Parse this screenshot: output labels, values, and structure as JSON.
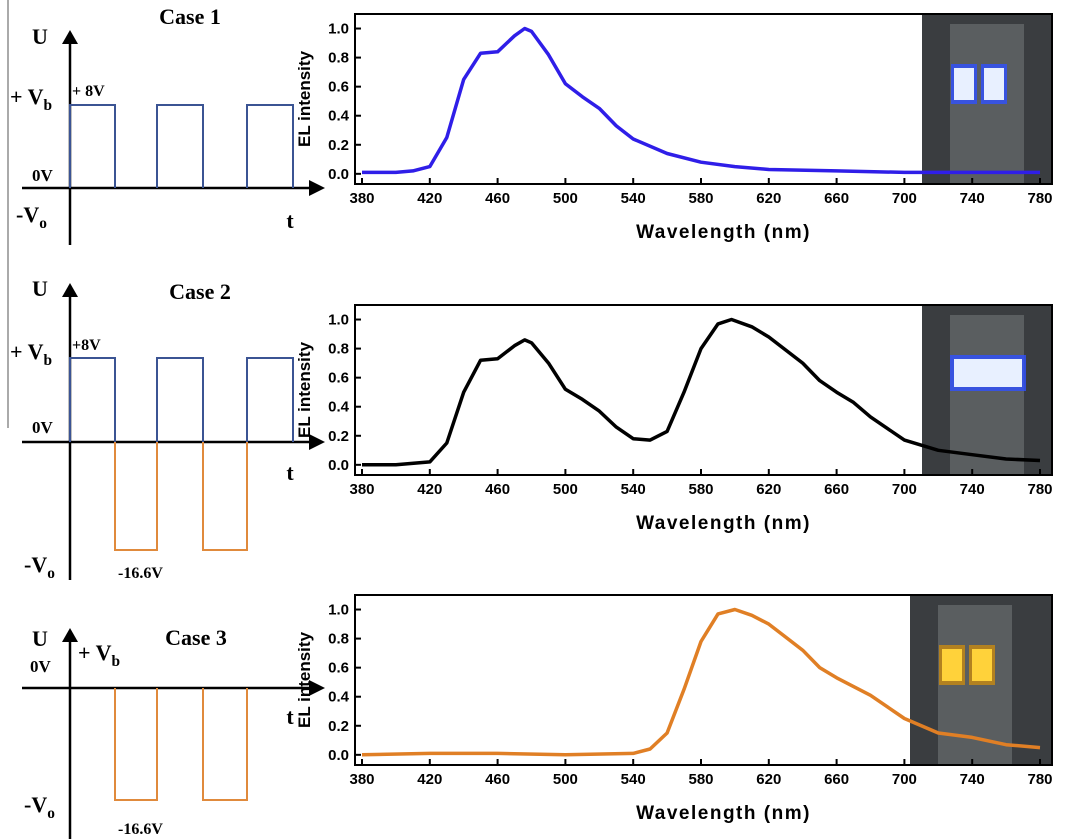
{
  "diagrams": [
    {
      "title": "Case 1",
      "y_axis": "U",
      "x_axis": "t",
      "labels": [
        {
          "text": "+ V",
          "sub": "b"
        },
        {
          "text": "+ 8V"
        },
        {
          "text": "0V"
        },
        {
          "text": "-V",
          "sub": "o"
        }
      ]
    },
    {
      "title": "Case 2",
      "y_axis": "U",
      "x_axis": "t",
      "labels": [
        {
          "text": "+ V",
          "sub": "b"
        },
        {
          "text": "+8V"
        },
        {
          "text": "0V"
        },
        {
          "text": "-V",
          "sub": "o"
        },
        {
          "text": "-16.6V"
        }
      ]
    },
    {
      "title": "Case 3",
      "y_axis": "U",
      "x_axis": "t",
      "labels": [
        {
          "text": "0V"
        },
        {
          "text": "+ V",
          "sub": "b"
        },
        {
          "text": "-V",
          "sub": "o"
        },
        {
          "text": "-16.6V"
        }
      ]
    }
  ],
  "chart_data": [
    {
      "type": "line",
      "xlabel": "Wavelength (nm)",
      "ylabel": "EL intensity",
      "color": "#2f1ee8",
      "x": [
        380,
        400,
        410,
        420,
        430,
        440,
        450,
        460,
        470,
        476,
        480,
        490,
        500,
        510,
        520,
        530,
        540,
        560,
        580,
        600,
        620,
        660,
        700,
        780
      ],
      "values": [
        0.01,
        0.01,
        0.02,
        0.05,
        0.25,
        0.65,
        0.83,
        0.84,
        0.95,
        1.0,
        0.98,
        0.82,
        0.62,
        0.53,
        0.45,
        0.33,
        0.24,
        0.14,
        0.08,
        0.05,
        0.03,
        0.02,
        0.01,
        0.01
      ],
      "xlim": [
        380,
        780
      ],
      "ylim": [
        -0.07,
        1.1
      ],
      "xticks": [
        380,
        420,
        460,
        500,
        540,
        580,
        620,
        660,
        700,
        740,
        780
      ],
      "yticks": [
        {
          "value": 0,
          "label": "0.0"
        },
        0.2,
        0.4,
        0.6,
        0.8,
        {
          "value": 1,
          "label": "1.0"
        }
      ]
    },
    {
      "type": "line",
      "xlabel": "Wavelength (nm)",
      "ylabel": "EL intensity",
      "color": "#000000",
      "x": [
        380,
        400,
        420,
        430,
        440,
        450,
        460,
        470,
        476,
        480,
        490,
        500,
        510,
        520,
        530,
        540,
        550,
        560,
        570,
        580,
        590,
        598,
        610,
        620,
        640,
        650,
        660,
        670,
        680,
        700,
        720,
        740,
        760,
        780
      ],
      "values": [
        0,
        0,
        0.02,
        0.15,
        0.5,
        0.72,
        0.73,
        0.82,
        0.86,
        0.84,
        0.7,
        0.52,
        0.45,
        0.37,
        0.26,
        0.18,
        0.17,
        0.23,
        0.5,
        0.8,
        0.97,
        1.0,
        0.95,
        0.88,
        0.7,
        0.58,
        0.5,
        0.43,
        0.33,
        0.17,
        0.1,
        0.07,
        0.04,
        0.03
      ],
      "xlim": [
        380,
        780
      ],
      "ylim": [
        -0.07,
        1.1
      ],
      "xticks": [
        380,
        420,
        460,
        500,
        540,
        580,
        620,
        660,
        700,
        740,
        780
      ],
      "yticks": [
        {
          "value": 0,
          "label": "0.0"
        },
        0.2,
        0.4,
        0.6,
        0.8,
        {
          "value": 1,
          "label": "1.0"
        }
      ]
    },
    {
      "type": "line",
      "xlabel": "Wavelength (nm)",
      "ylabel": "EL intensity",
      "color": "#e07f25",
      "x": [
        380,
        420,
        440,
        460,
        500,
        540,
        550,
        560,
        570,
        580,
        590,
        600,
        610,
        620,
        640,
        650,
        660,
        680,
        700,
        720,
        740,
        760,
        780
      ],
      "values": [
        0,
        0.01,
        0.01,
        0.01,
        0,
        0.01,
        0.04,
        0.15,
        0.45,
        0.78,
        0.97,
        1.0,
        0.96,
        0.9,
        0.72,
        0.6,
        0.53,
        0.41,
        0.25,
        0.15,
        0.12,
        0.07,
        0.05
      ],
      "xlim": [
        380,
        780
      ],
      "ylim": [
        -0.07,
        1.1
      ],
      "xticks": [
        380,
        420,
        460,
        500,
        540,
        580,
        620,
        660,
        700,
        740,
        780
      ],
      "yticks": [
        {
          "value": 0,
          "label": "0.0"
        },
        0.2,
        0.4,
        0.6,
        0.8,
        {
          "value": 1,
          "label": "1.0"
        }
      ]
    }
  ]
}
